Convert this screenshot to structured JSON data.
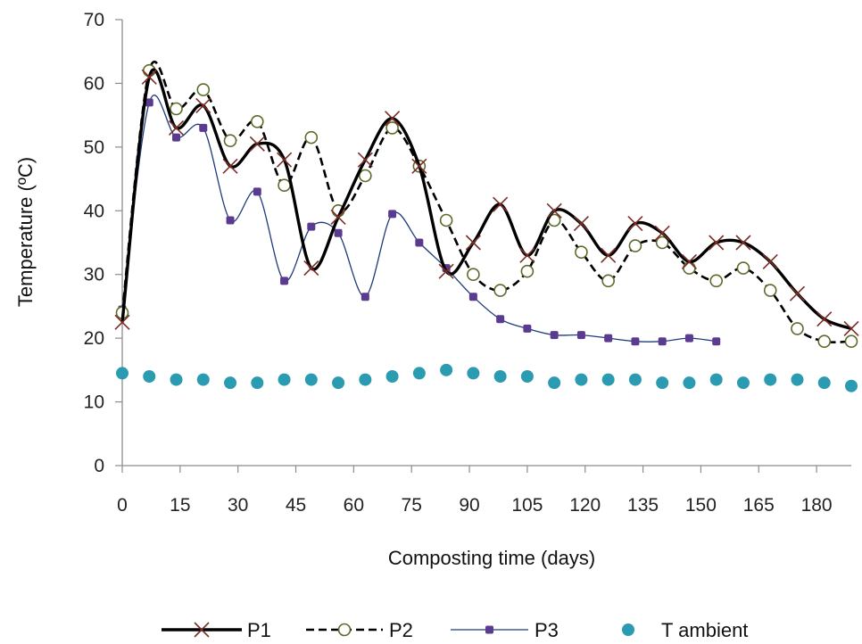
{
  "chart_data": {
    "type": "line",
    "xlabel": "Composting time (days)",
    "ylabel": "Temperature (ºC)",
    "xlim": [
      0,
      189
    ],
    "ylim": [
      0,
      70
    ],
    "xticks": [
      0,
      15,
      30,
      45,
      60,
      75,
      90,
      105,
      120,
      135,
      150,
      165,
      180
    ],
    "yticks": [
      0,
      10,
      20,
      30,
      40,
      50,
      60,
      70
    ],
    "grid": false,
    "legend_position": "bottom",
    "series": [
      {
        "name": "P1",
        "marker": "x",
        "line": "solid-thick",
        "color": "#000000",
        "marker_color": "#7a2e28",
        "x": [
          0,
          7,
          14,
          21,
          28,
          35,
          42,
          49,
          56,
          63,
          70,
          77,
          84,
          91,
          98,
          105,
          112,
          119,
          126,
          133,
          140,
          147,
          154,
          161,
          168,
          175,
          182,
          189
        ],
        "y": [
          22.5,
          61,
          53,
          56.5,
          47,
          50.5,
          48,
          31,
          39,
          48,
          54.5,
          47,
          30.5,
          35,
          41,
          33,
          40,
          38,
          33,
          38,
          36.5,
          32,
          35,
          35,
          32,
          27,
          23,
          21.5
        ]
      },
      {
        "name": "P2",
        "marker": "open-circle",
        "line": "dashed",
        "color": "#000000",
        "marker_color": "#5c6b2a",
        "x": [
          0,
          7,
          14,
          21,
          28,
          35,
          42,
          49,
          56,
          63,
          70,
          77,
          84,
          91,
          98,
          105,
          112,
          119,
          126,
          133,
          140,
          147,
          154,
          161,
          168,
          175,
          182,
          189
        ],
        "y": [
          24,
          62,
          56,
          59,
          51,
          54,
          44,
          51.5,
          40,
          45.5,
          53,
          47,
          38.5,
          30,
          27.5,
          30.5,
          38.5,
          33.5,
          29,
          34.5,
          35,
          31,
          29,
          31,
          27.5,
          21.5,
          19.5,
          19.5
        ]
      },
      {
        "name": "P3",
        "marker": "small-square",
        "line": "thin",
        "color": "#1f3a7a",
        "marker_color": "#5b3b8f",
        "x": [
          0,
          7,
          14,
          21,
          28,
          35,
          42,
          49,
          56,
          63,
          70,
          77,
          84,
          91,
          98,
          105,
          112,
          119,
          126,
          133,
          140,
          147,
          154
        ],
        "y": [
          24.5,
          57,
          51.5,
          53,
          38.5,
          43,
          29,
          37.5,
          36.5,
          26.5,
          39.5,
          35,
          31,
          26.5,
          23,
          21.5,
          20.5,
          20.5,
          20,
          19.5,
          19.5,
          20,
          19.5
        ]
      },
      {
        "name": "T ambient",
        "marker": "filled-circle",
        "line": "none",
        "color": "#2a9bb0",
        "marker_color": "#2a9bb0",
        "x": [
          0,
          7,
          14,
          21,
          28,
          35,
          42,
          49,
          56,
          63,
          70,
          77,
          84,
          91,
          98,
          105,
          112,
          119,
          126,
          133,
          140,
          147,
          154,
          161,
          168,
          175,
          182,
          189
        ],
        "y": [
          14.5,
          14,
          13.5,
          13.5,
          13,
          13,
          13.5,
          13.5,
          13,
          13.5,
          14,
          14.5,
          15,
          14.5,
          14,
          14,
          13,
          13.5,
          13.5,
          13.5,
          13,
          13,
          13.5,
          13,
          13.5,
          13.5,
          13,
          12.5
        ]
      }
    ]
  }
}
